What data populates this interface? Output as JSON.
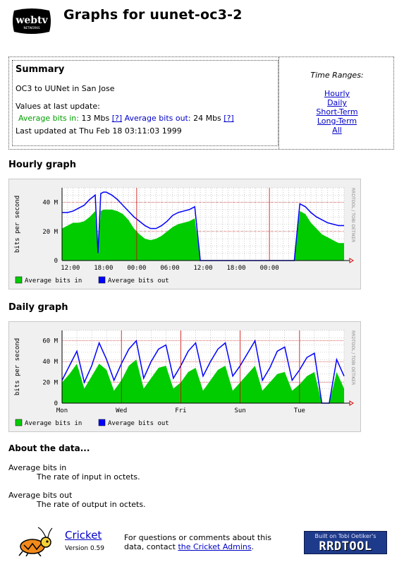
{
  "header": {
    "logo_text": "webtv",
    "logo_subtext": "NETWORKS",
    "title": "Graphs for uunet-oc3-2"
  },
  "summary": {
    "heading": "Summary",
    "description": "OC3 to UUNet in San Jose",
    "values_label": "Values at last update:",
    "avg_in_label": "Average bits in:",
    "avg_in_value": "13 Mbs",
    "help": "[?]",
    "avg_out_label": "Average bits out:",
    "avg_out_value": "24 Mbs",
    "last_updated": "Last updated at Thu Feb 18 03:11:03 1999"
  },
  "time_ranges": {
    "title": "Time Ranges:",
    "links": [
      "Hourly",
      "Daily",
      "Short-Term",
      "Long-Term",
      "All"
    ]
  },
  "hourly": {
    "title": "Hourly graph",
    "ylabel": "bits per second",
    "side_text": "RRDTOOL / TOBI OETIKER",
    "legend_in": "Average bits in",
    "legend_out": "Average bits out",
    "yticks": [
      "0",
      "20 M",
      "40 M"
    ],
    "xticks": [
      "12:00",
      "18:00",
      "00:00",
      "06:00",
      "12:00",
      "18:00",
      "00:00"
    ]
  },
  "daily": {
    "title": "Daily graph",
    "ylabel": "bits per second",
    "side_text": "RRDTOOL / TOBI OETIKER",
    "legend_in": "Average bits in",
    "legend_out": "Average bits out",
    "yticks": [
      "0",
      "20 M",
      "40 M",
      "60 M"
    ],
    "xticks": [
      "Mon",
      "Wed",
      "Fri",
      "Sun",
      "Tue"
    ]
  },
  "about": {
    "title": "About the data...",
    "terms": [
      {
        "term": "Average bits in",
        "definition": "The rate of input in octets."
      },
      {
        "term": "Average bits out",
        "definition": "The rate of output in octets."
      }
    ]
  },
  "footer": {
    "cricket": "Cricket",
    "version": "Version 0.59",
    "contact_line1": "For questions or comments about this",
    "contact_prefix": "data, contact",
    "contact_link": "the Cricket Admins",
    "contact_suffix": ".",
    "badge_top": "Built on Tobi Oetiker's",
    "badge_main": "RRDTOOL"
  },
  "colors": {
    "in": "#00cc00",
    "out": "#0000ff",
    "grid_major": "#cc0000",
    "grid_minor": "#999999"
  },
  "chart_data": [
    {
      "type": "area",
      "title": "Hourly graph",
      "ylabel": "bits per second",
      "ylim": [
        0,
        50
      ],
      "x_ticks": [
        "12:00",
        "18:00",
        "00:00",
        "06:00",
        "12:00",
        "18:00",
        "00:00"
      ],
      "series": [
        {
          "name": "Average bits in",
          "unit": "Mbps",
          "x_hours": [
            0,
            1,
            2,
            3,
            4,
            5,
            6,
            6.5,
            7,
            7.5,
            8,
            9,
            10,
            11,
            12,
            13,
            14,
            15,
            16,
            17,
            18,
            19,
            20,
            21,
            22,
            23,
            24,
            25,
            26,
            27,
            28,
            29,
            30,
            31,
            32,
            33,
            34,
            35,
            36,
            37,
            38,
            38.5,
            39,
            40,
            41,
            42,
            43,
            44,
            45,
            46,
            47,
            48,
            49,
            50,
            51
          ],
          "y_mbps": [
            22,
            24,
            26,
            26,
            27,
            30,
            34,
            4,
            34,
            35,
            35,
            35,
            34,
            32,
            28,
            22,
            18,
            15,
            14,
            15,
            17,
            20,
            23,
            25,
            26,
            27,
            29,
            0,
            0,
            0,
            0,
            0,
            0,
            0,
            0,
            0,
            0,
            0,
            0,
            0,
            0,
            0,
            0,
            0,
            0,
            0,
            34,
            32,
            26,
            22,
            18,
            16,
            14,
            12,
            12
          ]
        },
        {
          "name": "Average bits out",
          "unit": "Mbps",
          "x_hours": [
            0,
            1,
            2,
            3,
            4,
            5,
            6,
            6.5,
            7,
            7.5,
            8,
            9,
            10,
            11,
            12,
            13,
            14,
            15,
            16,
            17,
            18,
            19,
            20,
            21,
            22,
            23,
            24,
            25,
            26,
            27,
            28,
            29,
            30,
            31,
            32,
            33,
            34,
            35,
            36,
            37,
            38,
            38.5,
            39,
            40,
            41,
            42,
            43,
            44,
            45,
            46,
            47,
            48,
            49,
            50,
            51
          ],
          "y_mbps": [
            33,
            33,
            34,
            36,
            38,
            42,
            45,
            5,
            46,
            47,
            47,
            45,
            42,
            38,
            34,
            30,
            27,
            24,
            22,
            22,
            24,
            27,
            31,
            33,
            34,
            35,
            37,
            0,
            0,
            0,
            0,
            0,
            0,
            0,
            0,
            0,
            0,
            0,
            0,
            0,
            0,
            0,
            0,
            0,
            0,
            0,
            39,
            37,
            33,
            30,
            28,
            26,
            25,
            24,
            24
          ]
        }
      ]
    },
    {
      "type": "area",
      "title": "Daily graph",
      "ylabel": "bits per second",
      "ylim": [
        0,
        70
      ],
      "x_ticks": [
        "Mon",
        "Wed",
        "Fri",
        "Sun",
        "Tue"
      ],
      "series": [
        {
          "name": "Average bits in",
          "unit": "Mbps",
          "x_days": [
            0,
            0.25,
            0.5,
            0.75,
            1,
            1.25,
            1.5,
            1.75,
            2,
            2.25,
            2.5,
            2.75,
            3,
            3.25,
            3.5,
            3.75,
            4,
            4.25,
            4.5,
            4.75,
            5,
            5.25,
            5.5,
            5.75,
            6,
            6.25,
            6.5,
            6.75,
            7,
            7.25,
            7.5,
            7.75,
            8,
            8.25,
            8.5,
            8.75,
            9,
            9.25,
            9.5
          ],
          "y_mbps": [
            20,
            28,
            38,
            14,
            26,
            38,
            32,
            12,
            22,
            36,
            42,
            14,
            24,
            34,
            36,
            14,
            20,
            30,
            34,
            12,
            22,
            32,
            36,
            12,
            20,
            28,
            36,
            12,
            20,
            28,
            30,
            12,
            18,
            26,
            30,
            0,
            0,
            30,
            14
          ]
        },
        {
          "name": "Average bits out",
          "unit": "Mbps",
          "x_days": [
            0,
            0.25,
            0.5,
            0.75,
            1,
            1.25,
            1.5,
            1.75,
            2,
            2.25,
            2.5,
            2.75,
            3,
            3.25,
            3.5,
            3.75,
            4,
            4.25,
            4.5,
            4.75,
            5,
            5.25,
            5.5,
            5.75,
            6,
            6.25,
            6.5,
            6.75,
            7,
            7.25,
            7.5,
            7.75,
            8,
            8.25,
            8.5,
            8.75,
            9,
            9.25,
            9.5
          ],
          "y_mbps": [
            22,
            36,
            50,
            20,
            36,
            58,
            42,
            22,
            38,
            52,
            60,
            24,
            40,
            52,
            56,
            24,
            36,
            50,
            58,
            26,
            40,
            52,
            58,
            26,
            36,
            48,
            60,
            22,
            34,
            50,
            54,
            22,
            32,
            44,
            48,
            0,
            0,
            42,
            26
          ]
        }
      ]
    }
  ]
}
